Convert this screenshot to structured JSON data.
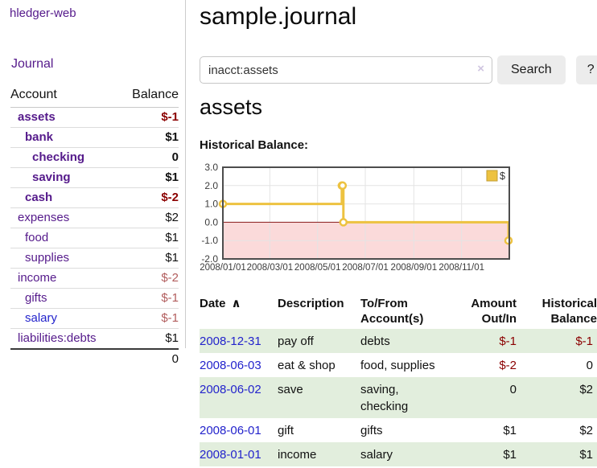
{
  "colors": {
    "link_purple": "#551a8b",
    "link_blue": "#2323cc",
    "negative": "#8b0000",
    "negative_muted": "#b25d5d",
    "row_green": "#e2eedd",
    "series_gold": "#edc240",
    "series_gold_border": "#c29d33",
    "chart_negative_fill": "#fbdada",
    "zero_line": "#8b1a1a",
    "chart_border": "#4d4d4d",
    "gridline": "#e4e4e4"
  },
  "sidebar": {
    "app_title": "hledger-web",
    "nav": {
      "journal_label": "Journal"
    },
    "accounts": {
      "header": {
        "account": "Account",
        "balance": "Balance"
      },
      "rows": [
        {
          "name": "assets",
          "indent": 1,
          "name_style": "purple-bold",
          "balance": "$-1",
          "bal_style": "negb"
        },
        {
          "name": "bank",
          "indent": 2,
          "name_style": "purple-bold",
          "balance": "$1",
          "bal_style": "posb"
        },
        {
          "name": "checking",
          "indent": 3,
          "name_style": "purple-bold",
          "balance": "0",
          "bal_style": "posb"
        },
        {
          "name": "saving",
          "indent": 3,
          "name_style": "purple-bold",
          "balance": "$1",
          "bal_style": "posb"
        },
        {
          "name": "cash",
          "indent": 2,
          "name_style": "purple-bold",
          "balance": "$-2",
          "bal_style": "negb"
        },
        {
          "name": "expenses",
          "indent": 1,
          "name_style": "purple",
          "balance": "$2",
          "bal_style": "pos"
        },
        {
          "name": "food",
          "indent": 2,
          "name_style": "purple",
          "balance": "$1",
          "bal_style": "pos"
        },
        {
          "name": "supplies",
          "indent": 2,
          "name_style": "purple",
          "balance": "$1",
          "bal_style": "pos"
        },
        {
          "name": "income",
          "indent": 1,
          "name_style": "purple",
          "balance": "$-2",
          "bal_style": "negm"
        },
        {
          "name": "gifts",
          "indent": 2,
          "name_style": "purple",
          "balance": "$-1",
          "bal_style": "negm"
        },
        {
          "name": "salary",
          "indent": 2,
          "name_style": "blue",
          "balance": "$-1",
          "bal_style": "negm"
        },
        {
          "name": "liabilities:debts",
          "indent": 1,
          "name_style": "purple",
          "balance": "$1",
          "bal_style": "pos"
        }
      ],
      "total": "0"
    }
  },
  "header": {
    "title": "sample.journal"
  },
  "search": {
    "value": "inacct:assets",
    "clear_icon": "×",
    "button_label": "Search",
    "help_label": "?"
  },
  "account_page": {
    "heading": "assets",
    "chart_label": "Historical Balance:"
  },
  "chart_data": {
    "type": "line",
    "title": "Historical Balance:",
    "step": true,
    "series": [
      {
        "name": "$",
        "x": [
          "2008-01-01",
          "2008-06-01",
          "2008-06-02",
          "2008-06-03",
          "2008-12-31"
        ],
        "y": [
          1,
          2,
          2,
          0,
          -1
        ]
      }
    ],
    "ylim": [
      -2,
      3
    ],
    "yticks": [
      3.0,
      2.0,
      1.0,
      0.0,
      -1.0,
      -2.0
    ],
    "xlim": [
      "2008-01-01",
      "2009-01-01"
    ],
    "xticks": [
      "2008/01/01",
      "2008/03/01",
      "2008/05/01",
      "2008/07/01",
      "2008/09/01",
      "2008/11/01"
    ],
    "legend": {
      "label": "$",
      "position": "top-right"
    },
    "grid": true,
    "negative_region_fill": true
  },
  "register": {
    "headers": [
      {
        "id": "date",
        "lines": [
          "Date"
        ],
        "sort": "asc"
      },
      {
        "id": "description",
        "lines": [
          "Description"
        ]
      },
      {
        "id": "tofrom",
        "lines": [
          "To/From",
          "Account(s)"
        ]
      },
      {
        "id": "amount",
        "lines": [
          "Amount",
          "Out/In"
        ],
        "align": "right"
      },
      {
        "id": "balance",
        "lines": [
          "Historical",
          "Balance"
        ],
        "align": "right"
      }
    ],
    "sort_icon": "∧",
    "rows": [
      {
        "date": "2008-12-31",
        "description": "pay off",
        "accounts_lines": [
          "debts"
        ],
        "amount": "$-1",
        "amount_neg": true,
        "balance": "$-1",
        "balance_neg": true,
        "shade": true
      },
      {
        "date": "2008-06-03",
        "description": "eat & shop",
        "accounts_lines": [
          "food, supplies"
        ],
        "amount": "$-2",
        "amount_neg": true,
        "balance": "0",
        "balance_neg": false,
        "shade": false
      },
      {
        "date": "2008-06-02",
        "description": "save",
        "accounts_lines": [
          "saving,",
          "checking"
        ],
        "amount": "0",
        "amount_neg": false,
        "balance": "$2",
        "balance_neg": false,
        "shade": true
      },
      {
        "date": "2008-06-01",
        "description": "gift",
        "accounts_lines": [
          "gifts"
        ],
        "amount": "$1",
        "amount_neg": false,
        "balance": "$2",
        "balance_neg": false,
        "shade": false
      },
      {
        "date": "2008-01-01",
        "description": "income",
        "accounts_lines": [
          "salary"
        ],
        "amount": "$1",
        "amount_neg": false,
        "balance": "$1",
        "balance_neg": false,
        "shade": true
      }
    ]
  }
}
